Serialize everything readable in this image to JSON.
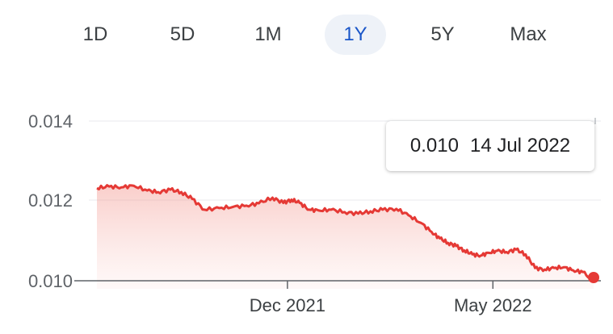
{
  "tabs": [
    {
      "label": "1D"
    },
    {
      "label": "5D"
    },
    {
      "label": "1M"
    },
    {
      "label": "1Y",
      "active": true
    },
    {
      "label": "5Y"
    },
    {
      "label": "Max"
    }
  ],
  "tooltip": {
    "value": "0.010",
    "date": "14 Jul 2022"
  },
  "colors": {
    "line": "#e53935",
    "accent": "#1a56c8"
  },
  "chart_data": {
    "type": "area",
    "title": "",
    "xlabel": "",
    "ylabel": "",
    "yticks": [
      "0.014",
      "0.012",
      "0.010"
    ],
    "ylim": [
      0.01,
      0.014
    ],
    "grid": true,
    "x_tick_labels": [
      "Dec 2021",
      "May 2022"
    ],
    "x_ticks": [
      "2021-12-01",
      "2022-05-01"
    ],
    "xlim": [
      "2021-07-14",
      "2022-07-14"
    ],
    "series": [
      {
        "x": [
          "2021-07-14",
          "2021-07-23",
          "2021-08-01",
          "2021-08-10",
          "2021-08-20",
          "2021-08-28",
          "2021-09-06",
          "2021-09-14",
          "2021-09-22",
          "2021-10-01",
          "2021-10-12",
          "2021-10-22",
          "2021-11-01",
          "2021-11-10",
          "2021-11-20",
          "2021-11-28",
          "2021-12-04",
          "2021-12-10",
          "2021-12-17",
          "2021-12-24",
          "2022-01-02",
          "2022-01-12",
          "2022-01-22",
          "2022-01-31",
          "2022-02-09",
          "2022-02-19",
          "2022-02-28",
          "2022-03-09",
          "2022-03-17",
          "2022-03-23",
          "2022-03-29",
          "2022-04-04",
          "2022-04-10",
          "2022-04-16",
          "2022-04-22",
          "2022-04-28",
          "2022-05-04",
          "2022-05-11",
          "2022-05-18",
          "2022-05-25",
          "2022-06-01",
          "2022-06-08",
          "2022-06-15",
          "2022-06-22",
          "2022-06-29",
          "2022-07-06",
          "2022-07-14"
        ],
        "y": [
          0.01232,
          0.01236,
          0.01234,
          0.01238,
          0.01226,
          0.01222,
          0.01228,
          0.01222,
          0.01205,
          0.01178,
          0.01182,
          0.01185,
          0.01188,
          0.01194,
          0.01208,
          0.01195,
          0.01203,
          0.01195,
          0.01178,
          0.01176,
          0.01178,
          0.01172,
          0.01168,
          0.01174,
          0.01178,
          0.0118,
          0.01164,
          0.01145,
          0.01122,
          0.01106,
          0.01095,
          0.01087,
          0.01076,
          0.01066,
          0.01063,
          0.0107,
          0.01075,
          0.01072,
          0.01078,
          0.01066,
          0.01032,
          0.01028,
          0.01032,
          0.01034,
          0.01026,
          0.01022,
          0.01
        ]
      }
    ]
  }
}
